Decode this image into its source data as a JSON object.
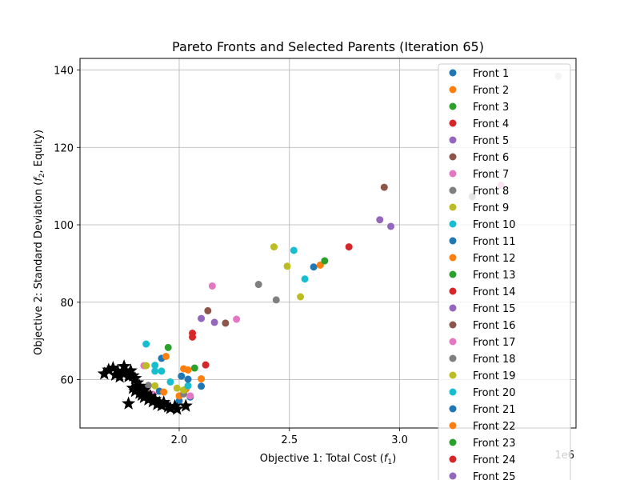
{
  "chart_data": {
    "type": "scatter",
    "title": "Pareto Fronts and Selected Parents (Iteration 65)",
    "xlabel_main": "Objective 1: Total Cost (",
    "xlabel_var": "f",
    "xlabel_sub": "1",
    "xlabel_end": ")",
    "ylabel_main": "Objective 2: Standard Deviation (",
    "ylabel_var": "f",
    "ylabel_sub": "2",
    "ylabel_end": ", Equity)",
    "x_offset_label": "1e6",
    "xlim": [
      1.55,
      3.8
    ],
    "ylim": [
      47.5,
      143
    ],
    "xticks": [
      2.0,
      2.5,
      3.0
    ],
    "xtick_labels": [
      "2.0",
      "2.5",
      "3.0"
    ],
    "yticks": [
      60,
      80,
      100,
      120,
      140
    ],
    "ytick_labels": [
      "60",
      "80",
      "100",
      "120",
      "140"
    ],
    "grid": true,
    "legend_placement": "upper right",
    "series": [
      {
        "name": "Front 1",
        "color": "#1f77b4",
        "points": [
          [
            1.91,
            57.0
          ],
          [
            2.0,
            54.5
          ],
          [
            2.05,
            55.5
          ]
        ]
      },
      {
        "name": "Front 2",
        "color": "#ff7f0e",
        "points": [
          [
            1.93,
            56.8
          ],
          [
            2.03,
            57.5
          ],
          [
            2.0,
            55.8
          ]
        ]
      },
      {
        "name": "Front 3",
        "color": "#2ca02c",
        "points": [
          [
            1.95,
            68.3
          ],
          [
            2.07,
            63.0
          ]
        ]
      },
      {
        "name": "Front 4",
        "color": "#d62728",
        "points": [
          [
            2.06,
            72.0
          ],
          [
            2.06,
            71.0
          ],
          [
            2.12,
            63.8
          ],
          [
            2.77,
            94.3
          ]
        ]
      },
      {
        "name": "Front 5",
        "color": "#9467bd",
        "points": [
          [
            2.1,
            75.8
          ],
          [
            2.16,
            74.8
          ],
          [
            2.91,
            101.3
          ],
          [
            2.96,
            99.6
          ]
        ]
      },
      {
        "name": "Front 6",
        "color": "#8c564b",
        "points": [
          [
            2.13,
            77.8
          ],
          [
            2.21,
            74.6
          ],
          [
            2.93,
            109.7
          ],
          [
            1.86,
            56.5
          ]
        ]
      },
      {
        "name": "Front 7",
        "color": "#e377c2",
        "points": [
          [
            2.15,
            84.2
          ],
          [
            2.26,
            75.6
          ],
          [
            1.84,
            63.6
          ],
          [
            2.05,
            55.8
          ],
          [
            1.88,
            56.2
          ]
        ]
      },
      {
        "name": "Front 8",
        "color": "#7f7f7f",
        "points": [
          [
            2.36,
            84.6
          ],
          [
            2.44,
            80.6
          ],
          [
            3.33,
            107.3
          ],
          [
            2.02,
            56.3
          ],
          [
            1.86,
            58.5
          ]
        ]
      },
      {
        "name": "Front 9",
        "color": "#bcbd22",
        "points": [
          [
            2.43,
            94.3
          ],
          [
            2.49,
            89.3
          ],
          [
            2.55,
            81.4
          ],
          [
            1.85,
            63.6
          ],
          [
            1.89,
            58.4
          ],
          [
            1.99,
            57.8
          ],
          [
            2.02,
            57.3
          ]
        ]
      },
      {
        "name": "Front 10",
        "color": "#17becf",
        "points": [
          [
            2.52,
            93.4
          ],
          [
            2.57,
            86.0
          ],
          [
            1.85,
            69.2
          ],
          [
            1.89,
            63.7
          ],
          [
            1.89,
            62.2
          ],
          [
            1.92,
            62.2
          ],
          [
            1.96,
            59.4
          ],
          [
            2.04,
            58.4
          ]
        ]
      },
      {
        "name": "Front 11",
        "color": "#1f77b4",
        "points": [
          [
            2.61,
            89.1
          ],
          [
            1.92,
            65.5
          ],
          [
            2.01,
            60.9
          ],
          [
            2.04,
            60.1
          ],
          [
            2.1,
            58.3
          ]
        ]
      },
      {
        "name": "Front 12",
        "color": "#ff7f0e",
        "points": [
          [
            2.64,
            89.6
          ],
          [
            1.94,
            66.0
          ],
          [
            2.02,
            62.8
          ],
          [
            2.04,
            62.5
          ],
          [
            2.1,
            60.2
          ]
        ]
      },
      {
        "name": "Front 13",
        "color": "#2ca02c",
        "points": [
          [
            2.66,
            90.7
          ]
        ]
      },
      {
        "name": "Front 14",
        "color": "#d62728",
        "points": []
      },
      {
        "name": "Front 15",
        "color": "#9467bd",
        "points": []
      },
      {
        "name": "Front 16",
        "color": "#8c564b",
        "points": []
      },
      {
        "name": "Front 17",
        "color": "#e377c2",
        "points": [
          [
            3.46,
            110.2
          ]
        ]
      },
      {
        "name": "Front 18",
        "color": "#7f7f7f",
        "points": []
      },
      {
        "name": "Front 19",
        "color": "#bcbd22",
        "points": []
      },
      {
        "name": "Front 20",
        "color": "#17becf",
        "points": []
      },
      {
        "name": "Front 21",
        "color": "#1f77b4",
        "points": []
      },
      {
        "name": "Front 22",
        "color": "#ff7f0e",
        "points": []
      },
      {
        "name": "Front 23",
        "color": "#2ca02c",
        "points": []
      },
      {
        "name": "Front 24",
        "color": "#d62728",
        "points": []
      },
      {
        "name": "Front 25",
        "color": "#9467bd",
        "points": []
      }
    ],
    "extra_points": [
      {
        "color": "#c7c7c7",
        "points": [
          [
            3.72,
            138.4
          ],
          [
            3.33,
            107.3
          ]
        ]
      }
    ],
    "selected_parents": {
      "color": "#000000",
      "marker": "star",
      "points": [
        [
          1.66,
          61.5
        ],
        [
          1.68,
          62.5
        ],
        [
          1.7,
          63.0
        ],
        [
          1.72,
          62.2
        ],
        [
          1.74,
          61.8
        ],
        [
          1.75,
          63.4
        ],
        [
          1.76,
          62.0
        ],
        [
          1.77,
          60.8
        ],
        [
          1.78,
          62.3
        ],
        [
          1.79,
          61.0
        ],
        [
          1.8,
          60.3
        ],
        [
          1.81,
          59.2
        ],
        [
          1.79,
          57.8
        ],
        [
          1.8,
          57.0
        ],
        [
          1.82,
          56.5
        ],
        [
          1.83,
          56.0
        ],
        [
          1.84,
          55.4
        ],
        [
          1.85,
          56.3
        ],
        [
          1.86,
          54.8
        ],
        [
          1.87,
          55.7
        ],
        [
          1.88,
          54.3
        ],
        [
          1.89,
          54.9
        ],
        [
          1.9,
          53.6
        ],
        [
          1.91,
          54.0
        ],
        [
          1.92,
          53.3
        ],
        [
          1.93,
          54.1
        ],
        [
          1.95,
          53.0
        ],
        [
          1.96,
          52.6
        ],
        [
          1.98,
          53.1
        ],
        [
          1.99,
          52.4
        ],
        [
          2.03,
          53.2
        ],
        [
          1.77,
          53.8
        ],
        [
          1.82,
          58.3
        ],
        [
          1.84,
          57.2
        ],
        [
          1.71,
          61.2
        ],
        [
          1.73,
          60.7
        ]
      ]
    }
  }
}
